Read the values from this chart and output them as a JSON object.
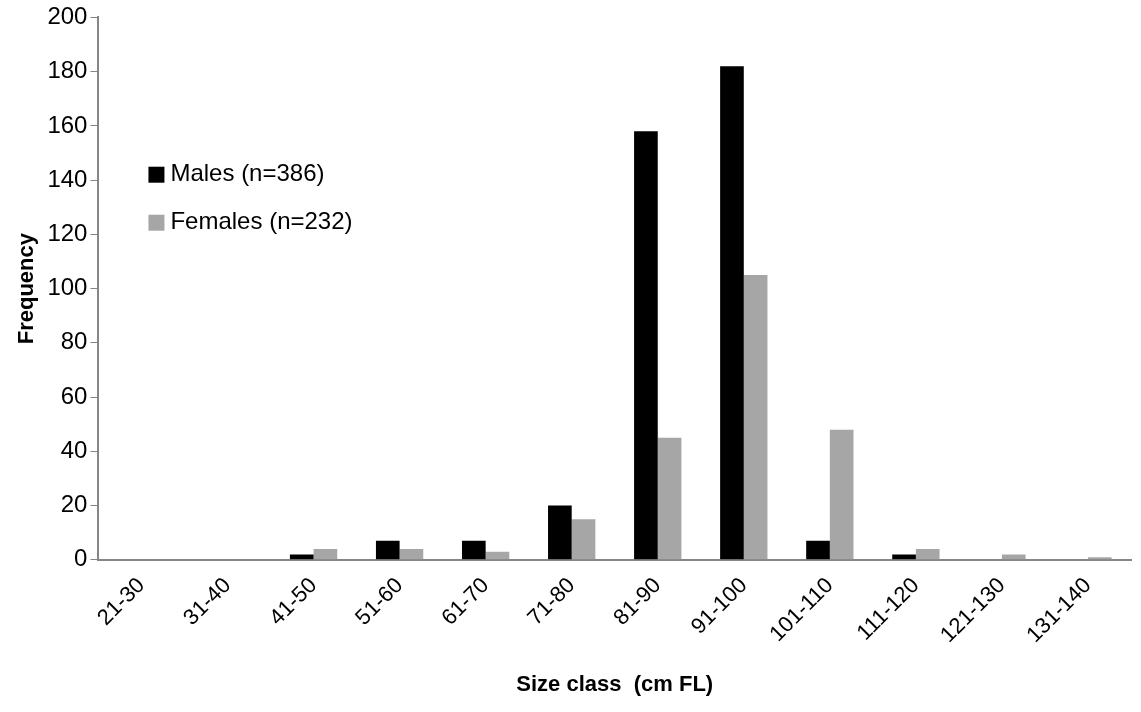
{
  "chart_data": {
    "type": "bar",
    "xlabel": "Size class  (cm FL)",
    "ylabel": "Frequency",
    "categories": [
      "21-30",
      "31-40",
      "41-50",
      "51-60",
      "61-70",
      "71-80",
      "81-90",
      "91-100",
      "101-110",
      "111-120",
      "121-130",
      "131-140"
    ],
    "series": [
      {
        "name": "Males (n=386)",
        "color": "#000000",
        "values": [
          0,
          0,
          2,
          7,
          7,
          20,
          158,
          182,
          7,
          2,
          0,
          0
        ]
      },
      {
        "name": "Females (n=232)",
        "color": "#a6a6a6",
        "values": [
          0,
          0,
          4,
          4,
          3,
          15,
          45,
          105,
          48,
          4,
          2,
          1
        ]
      }
    ],
    "ylim": [
      0,
      200
    ],
    "yticks": [
      0,
      20,
      40,
      60,
      80,
      100,
      120,
      140,
      160,
      180,
      200
    ],
    "grid": false,
    "legend": "left"
  }
}
